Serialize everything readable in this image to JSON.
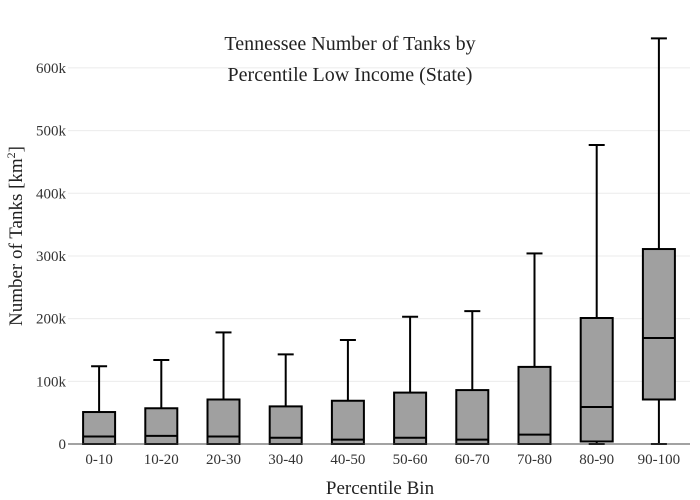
{
  "chart_data": {
    "type": "box",
    "title_line1": "Tennessee Number of Tanks by",
    "title_line2": "Percentile Low Income (State)",
    "xlabel": "Percentile Bin",
    "ylabel_main": "Number of Tanks  [km",
    "ylabel_sup": "2",
    "ylabel_close": "]",
    "ylim": [
      0,
      670000
    ],
    "y_ticks": [
      0,
      100000,
      200000,
      300000,
      400000,
      500000,
      600000
    ],
    "y_tick_labels": [
      "0",
      "100k",
      "200k",
      "300k",
      "400k",
      "500k",
      "600k"
    ],
    "grid": true,
    "box_color": "#a0a0a0",
    "categories": [
      "0-10",
      "10-20",
      "20-30",
      "30-40",
      "40-50",
      "50-60",
      "60-70",
      "70-80",
      "80-90",
      "90-100"
    ],
    "boxes": [
      {
        "min": 0,
        "q1": 0,
        "median": 12000,
        "q3": 51000,
        "max": 124000
      },
      {
        "min": 0,
        "q1": 0,
        "median": 13000,
        "q3": 57000,
        "max": 134000
      },
      {
        "min": 0,
        "q1": 0,
        "median": 12000,
        "q3": 71000,
        "max": 178000
      },
      {
        "min": 0,
        "q1": 0,
        "median": 10000,
        "q3": 60000,
        "max": 143000
      },
      {
        "min": 0,
        "q1": 0,
        "median": 7000,
        "q3": 69000,
        "max": 166000
      },
      {
        "min": 0,
        "q1": 0,
        "median": 10000,
        "q3": 82000,
        "max": 203000
      },
      {
        "min": 0,
        "q1": 0,
        "median": 7000,
        "q3": 86000,
        "max": 212000
      },
      {
        "min": 0,
        "q1": 0,
        "median": 15000,
        "q3": 123000,
        "max": 304000
      },
      {
        "min": 0,
        "q1": 4000,
        "median": 59000,
        "q3": 201000,
        "max": 477000
      },
      {
        "min": 0,
        "q1": 71000,
        "median": 169000,
        "q3": 311000,
        "max": 647000
      }
    ]
  }
}
